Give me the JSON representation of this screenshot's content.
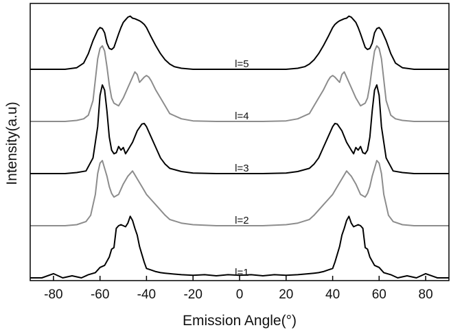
{
  "chart_data": {
    "type": "line",
    "xlabel": "Emission Angle(°)",
    "ylabel": "Intensity(a.u)",
    "xlim": [
      -90,
      90
    ],
    "xticks": [
      -80,
      -60,
      -40,
      -20,
      0,
      20,
      40,
      60,
      80
    ],
    "xtick_labels": [
      "-80",
      "-60",
      "-40",
      "-20",
      "0",
      "20",
      "40",
      "60",
      "80"
    ],
    "grid": false,
    "legend": "none",
    "series": [
      {
        "name": "l=1",
        "label": "l=1",
        "color": "#000000",
        "baseline": 0.0,
        "x": [
          -90,
          -85,
          -80,
          -76,
          -72,
          -68,
          -65,
          -62,
          -60,
          -58,
          -56,
          -55,
          -54,
          -53,
          -52,
          -51,
          -50,
          -49,
          -48,
          -47,
          -46,
          -45,
          -44,
          -43,
          -42,
          -41,
          -40,
          -38,
          -36,
          -34,
          -32,
          -30,
          -25,
          -20,
          -15,
          -10,
          -5,
          0,
          5,
          10,
          15,
          20,
          25,
          30,
          32,
          34,
          36,
          38,
          40,
          41,
          42,
          43,
          44,
          45,
          46,
          47,
          48,
          49,
          50,
          51,
          52,
          53,
          54,
          55,
          56,
          58,
          60,
          62,
          65,
          68,
          72,
          76,
          80,
          85,
          90
        ],
        "y": [
          0.0,
          0.0,
          0.08,
          0.0,
          0.04,
          0.0,
          0.06,
          0.1,
          0.2,
          0.24,
          0.4,
          0.55,
          0.58,
          0.95,
          1.0,
          1.02,
          1.0,
          0.98,
          1.05,
          1.18,
          1.1,
          0.95,
          0.82,
          0.6,
          0.45,
          0.3,
          0.18,
          0.15,
          0.12,
          0.1,
          0.09,
          0.08,
          0.06,
          0.05,
          0.06,
          0.04,
          0.06,
          0.05,
          0.06,
          0.04,
          0.06,
          0.05,
          0.06,
          0.08,
          0.09,
          0.1,
          0.12,
          0.15,
          0.18,
          0.3,
          0.45,
          0.6,
          0.82,
          0.95,
          1.1,
          1.18,
          1.05,
          0.98,
          1.0,
          1.02,
          1.0,
          0.95,
          0.58,
          0.55,
          0.4,
          0.24,
          0.2,
          0.1,
          0.06,
          0.0,
          0.04,
          0.0,
          0.08,
          0.0,
          0.0
        ]
      },
      {
        "name": "l=2",
        "label": "l=2",
        "color": "#8c8c8c",
        "baseline": 1.0,
        "x": [
          -90,
          -80,
          -75,
          -70,
          -66,
          -64,
          -62,
          -61,
          -60,
          -59,
          -58,
          -57,
          -56,
          -55,
          -54,
          -52,
          -50,
          -48,
          -46,
          -44,
          -42,
          -40,
          -38,
          -36,
          -34,
          -32,
          -30,
          -25,
          -20,
          -10,
          0,
          10,
          20,
          25,
          30,
          32,
          34,
          36,
          38,
          40,
          42,
          44,
          46,
          48,
          50,
          52,
          54,
          55,
          56,
          57,
          58,
          59,
          60,
          61,
          62,
          64,
          66,
          70,
          75,
          80,
          90
        ],
        "y": [
          0.0,
          0.0,
          0.0,
          0.02,
          0.08,
          0.2,
          0.6,
          1.0,
          1.2,
          1.25,
          1.1,
          0.95,
          0.75,
          0.62,
          0.55,
          0.6,
          0.8,
          0.95,
          1.05,
          0.9,
          0.75,
          0.6,
          0.5,
          0.4,
          0.3,
          0.2,
          0.12,
          0.05,
          0.02,
          0.0,
          0.0,
          0.0,
          0.02,
          0.05,
          0.12,
          0.2,
          0.3,
          0.4,
          0.5,
          0.6,
          0.75,
          0.9,
          1.05,
          0.95,
          0.8,
          0.6,
          0.55,
          0.62,
          0.75,
          0.95,
          1.1,
          1.25,
          1.2,
          1.0,
          0.6,
          0.2,
          0.08,
          0.02,
          0.0,
          0.0,
          0.0
        ]
      },
      {
        "name": "l=3",
        "label": "l=3",
        "color": "#000000",
        "baseline": 2.0,
        "x": [
          -90,
          -75,
          -70,
          -66,
          -63,
          -61,
          -60,
          -59,
          -58,
          -57,
          -56,
          -55,
          -54,
          -53,
          -52,
          -51,
          -50,
          -49,
          -48,
          -46,
          -44,
          -42,
          -41,
          -40,
          -38,
          -36,
          -34,
          -32,
          -30,
          -25,
          -20,
          -10,
          0,
          10,
          20,
          25,
          30,
          32,
          34,
          36,
          38,
          40,
          41,
          42,
          44,
          46,
          48,
          49,
          50,
          51,
          52,
          53,
          54,
          55,
          56,
          57,
          58,
          59,
          60,
          61,
          63,
          66,
          70,
          75,
          90
        ],
        "y": [
          0.0,
          0.0,
          0.02,
          0.05,
          0.3,
          0.9,
          1.5,
          1.7,
          1.6,
          1.2,
          0.7,
          0.45,
          0.38,
          0.4,
          0.52,
          0.45,
          0.5,
          0.38,
          0.45,
          0.6,
          0.82,
          0.95,
          0.96,
          0.9,
          0.7,
          0.5,
          0.3,
          0.18,
          0.1,
          0.04,
          0.01,
          0.0,
          0.0,
          0.0,
          0.01,
          0.04,
          0.1,
          0.18,
          0.3,
          0.5,
          0.7,
          0.9,
          0.96,
          0.95,
          0.82,
          0.6,
          0.45,
          0.38,
          0.5,
          0.45,
          0.52,
          0.4,
          0.38,
          0.45,
          0.7,
          1.2,
          1.6,
          1.7,
          1.5,
          0.9,
          0.3,
          0.05,
          0.02,
          0.0,
          0.0
        ]
      },
      {
        "name": "l=4",
        "label": "l=4",
        "color": "#8c8c8c",
        "baseline": 3.0,
        "x": [
          -90,
          -75,
          -70,
          -67,
          -65,
          -63,
          -62,
          -61,
          -60,
          -59,
          -58,
          -57,
          -56,
          -55,
          -54,
          -52,
          -50,
          -48,
          -46,
          -45,
          -44,
          -43,
          -42,
          -41,
          -40,
          -39,
          -38,
          -36,
          -34,
          -32,
          -30,
          -25,
          -20,
          -10,
          0,
          10,
          20,
          25,
          30,
          32,
          34,
          36,
          38,
          39,
          40,
          41,
          42,
          43,
          44,
          45,
          46,
          48,
          50,
          52,
          54,
          55,
          56,
          57,
          58,
          59,
          60,
          61,
          62,
          63,
          65,
          67,
          70,
          75,
          90
        ],
        "y": [
          0.0,
          0.0,
          0.02,
          0.05,
          0.12,
          0.4,
          0.8,
          1.2,
          1.4,
          1.45,
          1.35,
          1.05,
          0.7,
          0.45,
          0.35,
          0.3,
          0.45,
          0.65,
          0.85,
          0.95,
          0.9,
          0.75,
          0.8,
          0.85,
          0.88,
          0.85,
          0.78,
          0.6,
          0.45,
          0.3,
          0.15,
          0.05,
          0.01,
          0.0,
          0.0,
          0.0,
          0.01,
          0.05,
          0.15,
          0.3,
          0.45,
          0.6,
          0.78,
          0.85,
          0.88,
          0.85,
          0.8,
          0.75,
          0.9,
          0.95,
          0.85,
          0.65,
          0.45,
          0.3,
          0.35,
          0.45,
          0.7,
          1.05,
          1.35,
          1.45,
          1.4,
          1.2,
          0.8,
          0.4,
          0.12,
          0.05,
          0.02,
          0.0,
          0.0
        ]
      },
      {
        "name": "l=5",
        "label": "l=5",
        "color": "#000000",
        "baseline": 4.0,
        "x": [
          -90,
          -75,
          -70,
          -67,
          -65,
          -63,
          -61,
          -60,
          -59,
          -58,
          -57,
          -56,
          -55,
          -54,
          -53,
          -52,
          -51,
          -50,
          -49,
          -48,
          -47,
          -46,
          -45,
          -44,
          -43,
          -42,
          -41,
          -40,
          -38,
          -36,
          -34,
          -32,
          -30,
          -28,
          -25,
          -20,
          -10,
          0,
          10,
          20,
          25,
          28,
          30,
          32,
          34,
          36,
          38,
          40,
          41,
          42,
          43,
          44,
          45,
          46,
          47,
          48,
          49,
          50,
          51,
          52,
          53,
          54,
          55,
          56,
          57,
          58,
          59,
          60,
          61,
          63,
          65,
          67,
          70,
          75,
          90
        ],
        "y": [
          0.0,
          0.0,
          0.03,
          0.12,
          0.3,
          0.55,
          0.75,
          0.8,
          0.78,
          0.7,
          0.5,
          0.4,
          0.38,
          0.42,
          0.55,
          0.68,
          0.8,
          0.9,
          0.95,
          1.0,
          1.02,
          0.98,
          0.97,
          0.95,
          0.93,
          0.9,
          0.86,
          0.8,
          0.62,
          0.45,
          0.3,
          0.18,
          0.1,
          0.05,
          0.02,
          0.0,
          0.0,
          0.0,
          0.0,
          0.0,
          0.02,
          0.05,
          0.1,
          0.18,
          0.3,
          0.45,
          0.62,
          0.8,
          0.86,
          0.9,
          0.93,
          0.95,
          0.97,
          0.98,
          1.02,
          1.0,
          0.95,
          0.9,
          0.8,
          0.68,
          0.55,
          0.42,
          0.38,
          0.4,
          0.5,
          0.7,
          0.78,
          0.8,
          0.75,
          0.55,
          0.3,
          0.12,
          0.03,
          0.0,
          0.0
        ]
      }
    ]
  }
}
